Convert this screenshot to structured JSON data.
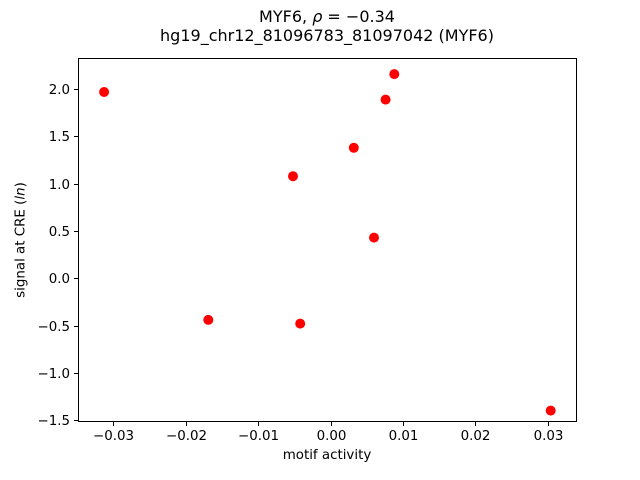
{
  "chart_data": {
    "type": "scatter",
    "title": "MYF6, ρ = −0.34",
    "subtitle": "hg19_chr12_81096783_81097042 (MYF6)",
    "xlabel": "motif activity",
    "ylabel": "signal at CRE (ln)",
    "marker_color": "#ff0000",
    "marker_radius_px": 5,
    "grid": false,
    "legend": false,
    "xlim": [
      -0.0349,
      0.0339
    ],
    "ylim": [
      -1.51,
      2.33
    ],
    "xticks": [
      -0.03,
      -0.02,
      -0.01,
      0.0,
      0.01,
      0.02,
      0.03
    ],
    "xtick_labels": [
      "−0.03",
      "−0.02",
      "−0.01",
      "0.00",
      "0.01",
      "0.02",
      "0.03"
    ],
    "yticks": [
      -1.5,
      -1.0,
      -0.5,
      0.0,
      0.5,
      1.0,
      1.5,
      2.0
    ],
    "ytick_labels": [
      "−1.5",
      "−1.0",
      "−0.5",
      "0.0",
      "0.5",
      "1.0",
      "1.5",
      "2.0"
    ],
    "points": [
      {
        "x": -0.0313,
        "y": 1.97
      },
      {
        "x": 0.0088,
        "y": 2.16
      },
      {
        "x": 0.0076,
        "y": 1.89
      },
      {
        "x": 0.0032,
        "y": 1.38
      },
      {
        "x": -0.0052,
        "y": 1.08
      },
      {
        "x": 0.006,
        "y": 0.43
      },
      {
        "x": -0.0169,
        "y": -0.44
      },
      {
        "x": -0.0042,
        "y": -0.48
      },
      {
        "x": 0.0304,
        "y": -1.4
      }
    ]
  },
  "title": {
    "line1_pre": "MYF6, ",
    "rho": "ρ",
    "line1_post": " = −0.34",
    "line2": "hg19_chr12_81096783_81097042 (MYF6)"
  },
  "ylabel": {
    "pre": "signal at CRE (",
    "italic": "ln",
    "post": ")"
  },
  "xlabel": {
    "text": "motif activity"
  }
}
